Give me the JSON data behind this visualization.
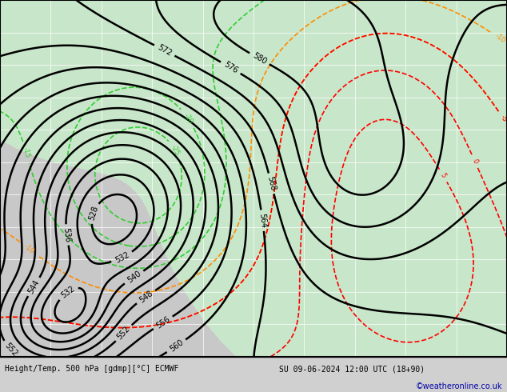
{
  "title_bottom": "Height/Temp. 500 hPa [gdmp][°C] ECMWF",
  "date_str": "SU 09-06-2024 12:00 UTC (18+90)",
  "credit": "©weatheronline.co.uk",
  "bg_color": "#d0d0d0",
  "grid_color": "#ffffff",
  "land_color": "#c8e6c9",
  "ocean_color": "#d8d8d8",
  "height_contour_color": "#000000",
  "temp_warm_color": "#ff8c00",
  "temp_cold_color": "#ff0000",
  "temp_green_color": "#32cd32",
  "temp_cyan_color": "#00ced1",
  "temp_blue_color": "#0000ff",
  "figsize": [
    6.34,
    4.9
  ],
  "dpi": 100
}
